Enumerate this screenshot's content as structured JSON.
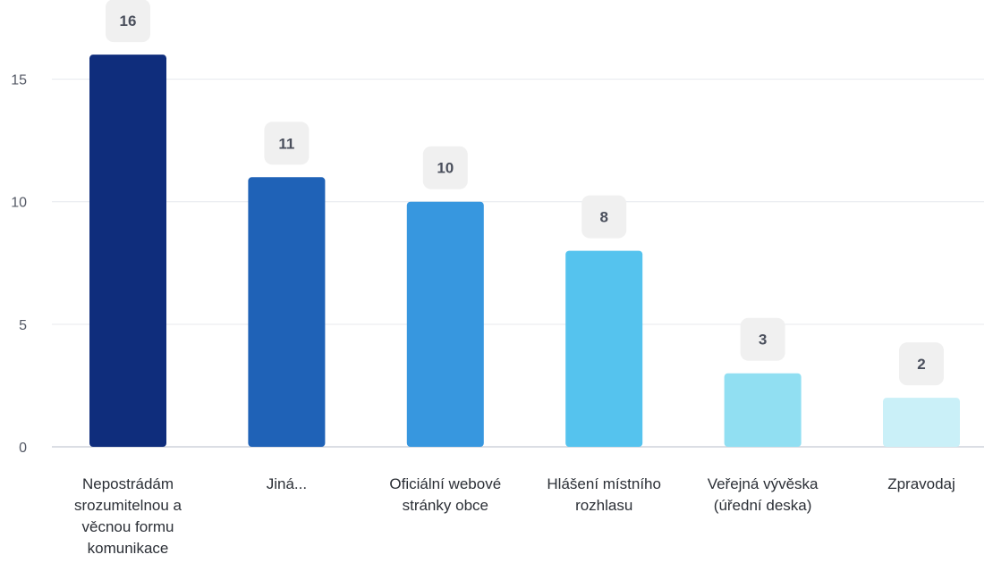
{
  "chart_data": {
    "type": "bar",
    "title": "",
    "xlabel": "",
    "ylabel": "",
    "ylim": [
      0,
      17.5
    ],
    "yticks": [
      0,
      5,
      10,
      15
    ],
    "grid": true,
    "categories": [
      [
        "Nepostrádám",
        "srozumitelnou a",
        "věcnou formu",
        "komunikace"
      ],
      [
        "Jiná..."
      ],
      [
        "Oficiální webové",
        "stránky obce"
      ],
      [
        "Hlášení místního",
        "rozhlasu"
      ],
      [
        "Veřejná vývěska",
        "(úřední deska)"
      ],
      [
        "Zpravodaj"
      ]
    ],
    "values": [
      16,
      11,
      10,
      8,
      3,
      2
    ],
    "data_labels": [
      "16",
      "11",
      "10",
      "8",
      "3",
      "2"
    ],
    "colors": [
      "#0f2d7c",
      "#1f62b7",
      "#3797df",
      "#55c3ee",
      "#91dff2",
      "#caf0f8"
    ],
    "label_badge_color": "#f0f0f0",
    "label_text_color": "#4a4f5c",
    "axis_text_color": "#555a66",
    "grid_color": "#e6e9ee"
  }
}
